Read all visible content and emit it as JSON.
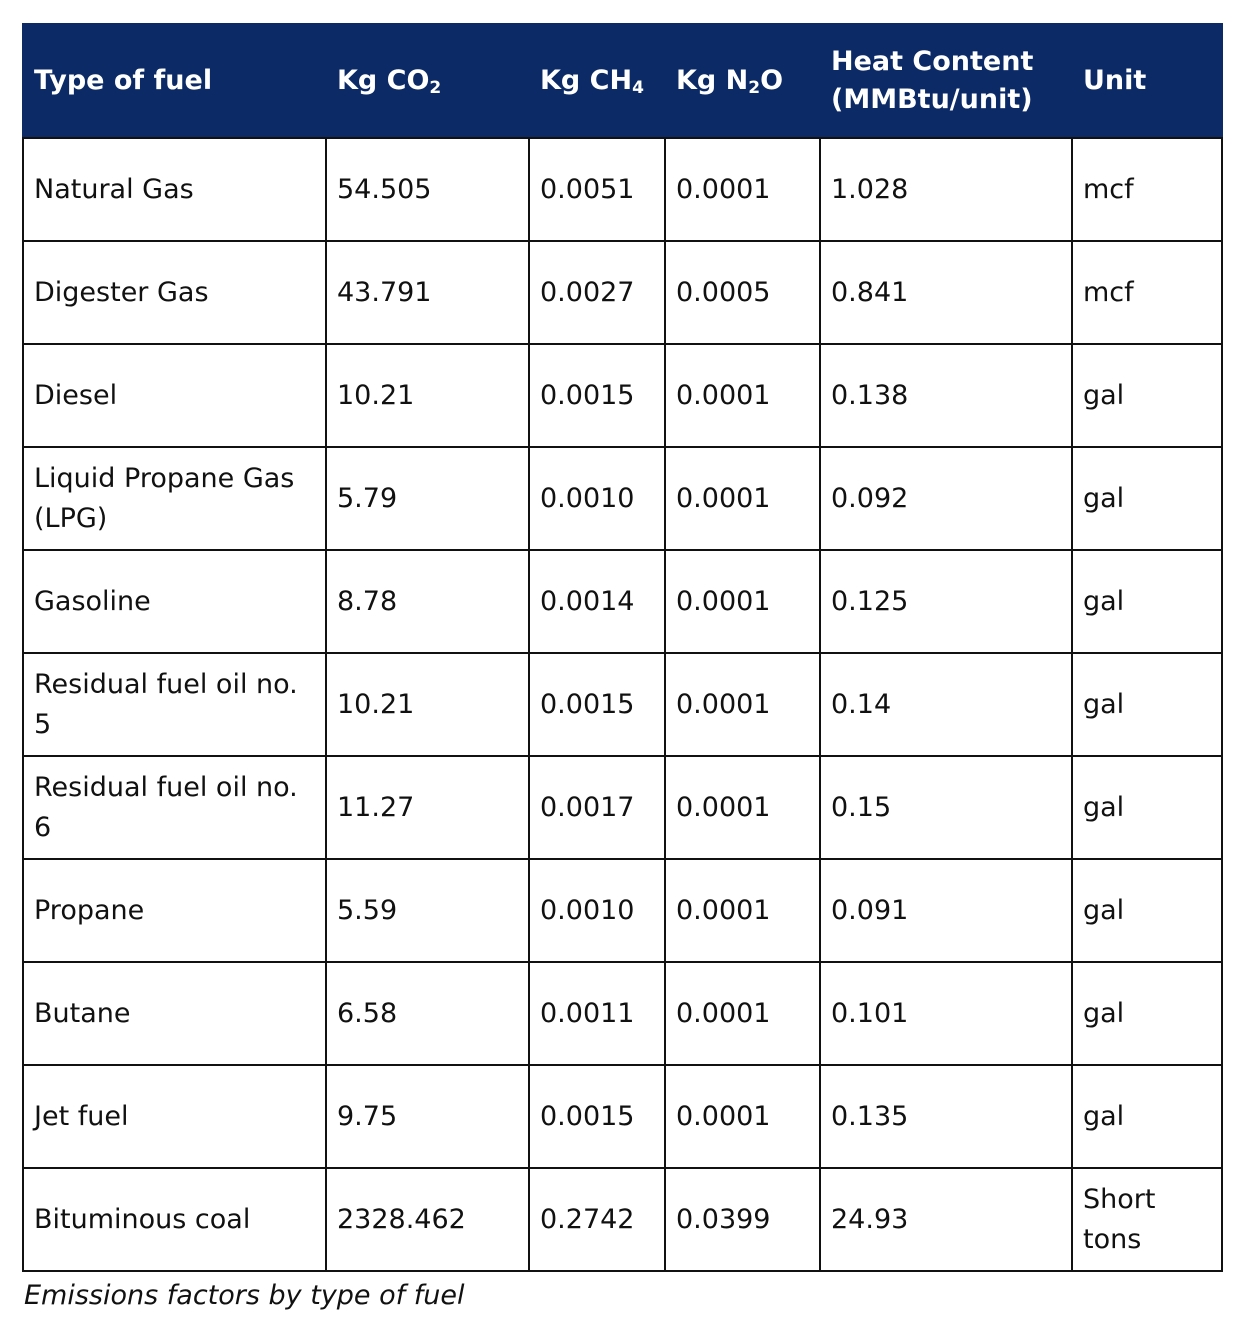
{
  "table": {
    "headers": [
      {
        "parts": [
          {
            "text": "Type of fuel"
          }
        ]
      },
      {
        "parts": [
          {
            "text": "Kg CO"
          },
          {
            "text": "2",
            "sub": true
          }
        ]
      },
      {
        "parts": [
          {
            "text": "Kg CH"
          },
          {
            "text": "4",
            "sub": true
          }
        ]
      },
      {
        "parts": [
          {
            "text": "Kg N"
          },
          {
            "text": "2",
            "sub": true
          },
          {
            "text": "O"
          }
        ]
      },
      {
        "parts": [
          {
            "text": "Heat Content (MMBtu/unit)"
          }
        ]
      },
      {
        "parts": [
          {
            "text": "Unit"
          }
        ]
      }
    ],
    "rows": [
      [
        "Natural Gas",
        "54.505",
        "0.0051",
        "0.0001",
        "1.028",
        "mcf"
      ],
      [
        "Digester Gas",
        "43.791",
        "0.0027",
        "0.0005",
        "0.841",
        "mcf"
      ],
      [
        "Diesel",
        "10.21",
        "0.0015",
        "0.0001",
        "0.138",
        "gal"
      ],
      [
        "Liquid Propane Gas (LPG)",
        "5.79",
        "0.0010",
        "0.0001",
        "0.092",
        "gal"
      ],
      [
        "Gasoline",
        "8.78",
        "0.0014",
        "0.0001",
        "0.125",
        "gal"
      ],
      [
        "Residual fuel oil no. 5",
        "10.21",
        "0.0015",
        "0.0001",
        "0.14",
        "gal"
      ],
      [
        "Residual fuel oil no. 6",
        "11.27",
        "0.0017",
        "0.0001",
        "0.15",
        "gal"
      ],
      [
        "Propane",
        "5.59",
        "0.0010",
        "0.0001",
        "0.091",
        "gal"
      ],
      [
        "Butane",
        "6.58",
        "0.0011",
        "0.0001",
        "0.101",
        "gal"
      ],
      [
        "Jet fuel",
        "9.75",
        "0.0015",
        "0.0001",
        "0.135",
        "gal"
      ],
      [
        "Bituminous coal",
        "2328.462",
        "0.2742",
        "0.0399",
        "24.93",
        "Short tons"
      ]
    ]
  },
  "caption": "Emissions factors by type of fuel",
  "colors": {
    "header_background": "#0b2a66",
    "header_text": "#ffffff",
    "border": "#111111"
  }
}
